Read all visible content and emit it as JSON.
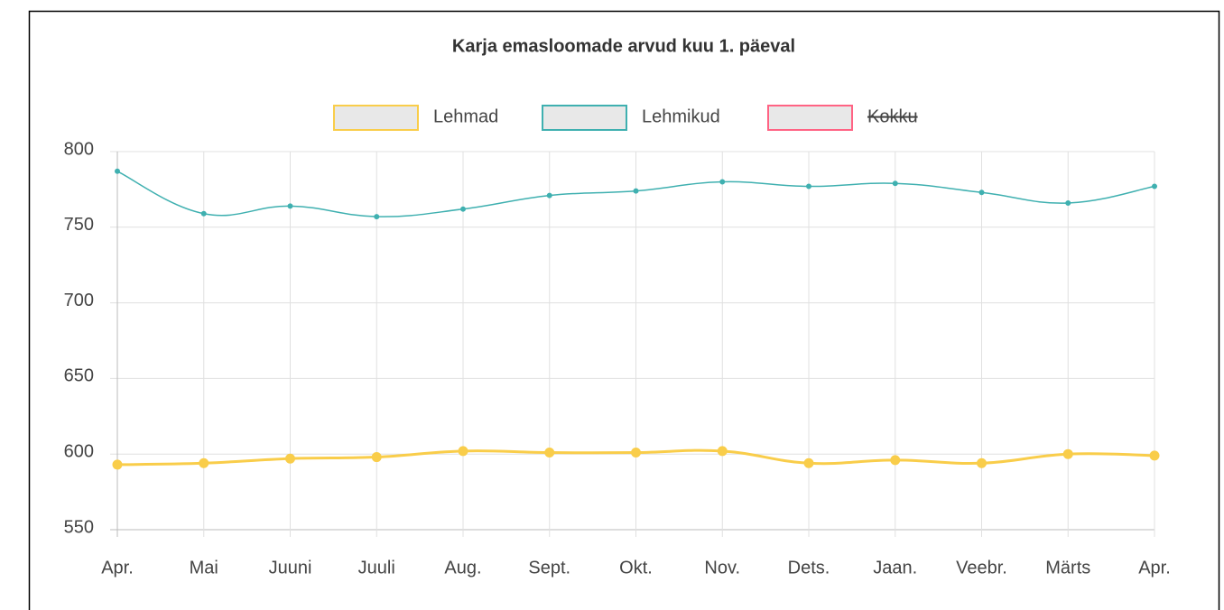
{
  "chart_data": {
    "type": "line",
    "title": "Karja emasloomade arvud  kuu 1. päeval",
    "categories": [
      "Apr.",
      "Mai",
      "Juuni",
      "Juuli",
      "Aug.",
      "Sept.",
      "Okt.",
      "Nov.",
      "Dets.",
      "Jaan.",
      "Veebr.",
      "Märts",
      "Apr."
    ],
    "series": [
      {
        "name": "Lehmad",
        "color": "#f9cd4a",
        "values": [
          593,
          594,
          597,
          598,
          602,
          601,
          601,
          602,
          594,
          596,
          594,
          600,
          599
        ]
      },
      {
        "name": "Lehmikud",
        "color": "#3fb0b0",
        "values": [
          787,
          759,
          764,
          757,
          762,
          771,
          774,
          780,
          777,
          779,
          773,
          766,
          777
        ]
      },
      {
        "name": "Kokku",
        "color": "#ff6384",
        "hidden": true,
        "values": [
          null,
          null,
          null,
          null,
          null,
          null,
          null,
          null,
          null,
          null,
          null,
          null,
          null
        ]
      }
    ],
    "ylim": [
      550,
      800
    ],
    "yticks": [
      550,
      600,
      650,
      700,
      750,
      800
    ],
    "grid": true,
    "legend": "top"
  }
}
